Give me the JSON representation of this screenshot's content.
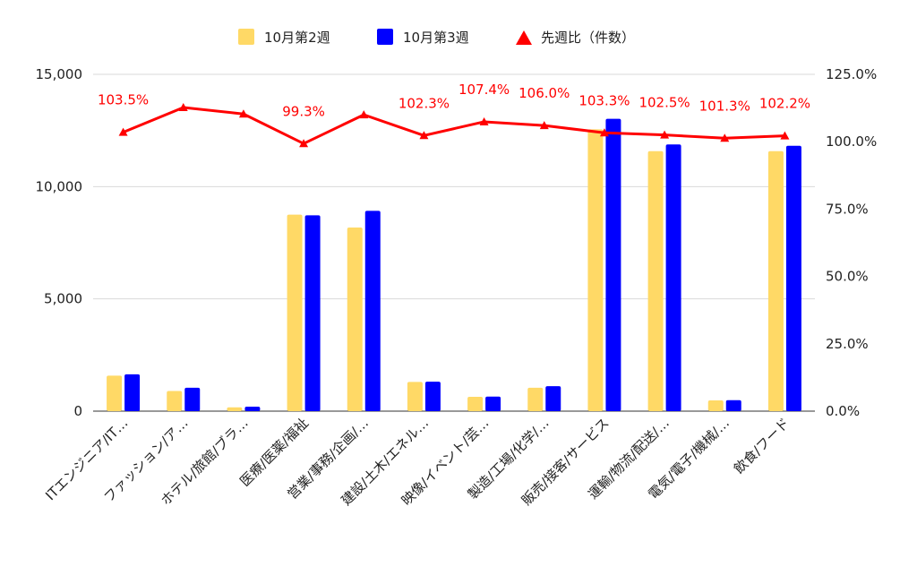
{
  "chart_data": {
    "type": "bar",
    "categories": [
      "ITエンジニア/IT…",
      "ファッション/ア…",
      "ホテル/旅館/ブラ…",
      "医療/医薬/福祉",
      "営業/事務/企画/…",
      "建設/土木/エネル…",
      "映像/イベント/芸…",
      "製造/工場/化学/…",
      "販売/接客/サービス",
      "運輸/物流/配送/…",
      "電気/電子/機械/…",
      "飲食/フード"
    ],
    "series": [
      {
        "name": "10月第2週",
        "color": "#ffd966",
        "values": [
          1580,
          900,
          170,
          8750,
          8180,
          1300,
          640,
          1040,
          12550,
          11580,
          480,
          11580
        ]
      },
      {
        "name": "10月第3週",
        "color": "#0000ff",
        "values": [
          1640,
          1040,
          200,
          8720,
          8920,
          1310,
          650,
          1110,
          13020,
          11880,
          490,
          11820
        ]
      }
    ],
    "line": {
      "name": "先週比（件数）",
      "color": "#ff0000",
      "values": [
        103.5,
        112.7,
        110.3,
        99.3,
        110.0,
        102.3,
        107.4,
        106.0,
        103.3,
        102.5,
        101.3,
        102.2
      ],
      "labels": [
        "103.5%",
        "",
        "",
        "99.3%",
        "",
        "102.3%",
        "107.4%",
        "106.0%",
        "103.3%",
        "102.5%",
        "101.3%",
        "102.2%"
      ]
    },
    "yleft": {
      "min": 0,
      "max": 15000,
      "ticks": [
        "0",
        "5,000",
        "10,000",
        "15,000"
      ],
      "tick_values": [
        0,
        5000,
        10000,
        15000
      ]
    },
    "yright": {
      "min": 0,
      "max": 125,
      "ticks": [
        "0.0%",
        "25.0%",
        "50.0%",
        "75.0%",
        "100.0%",
        "125.0%"
      ],
      "tick_values": [
        0,
        25,
        50,
        75,
        100,
        125
      ]
    },
    "grid": true,
    "legend_position": "top"
  }
}
